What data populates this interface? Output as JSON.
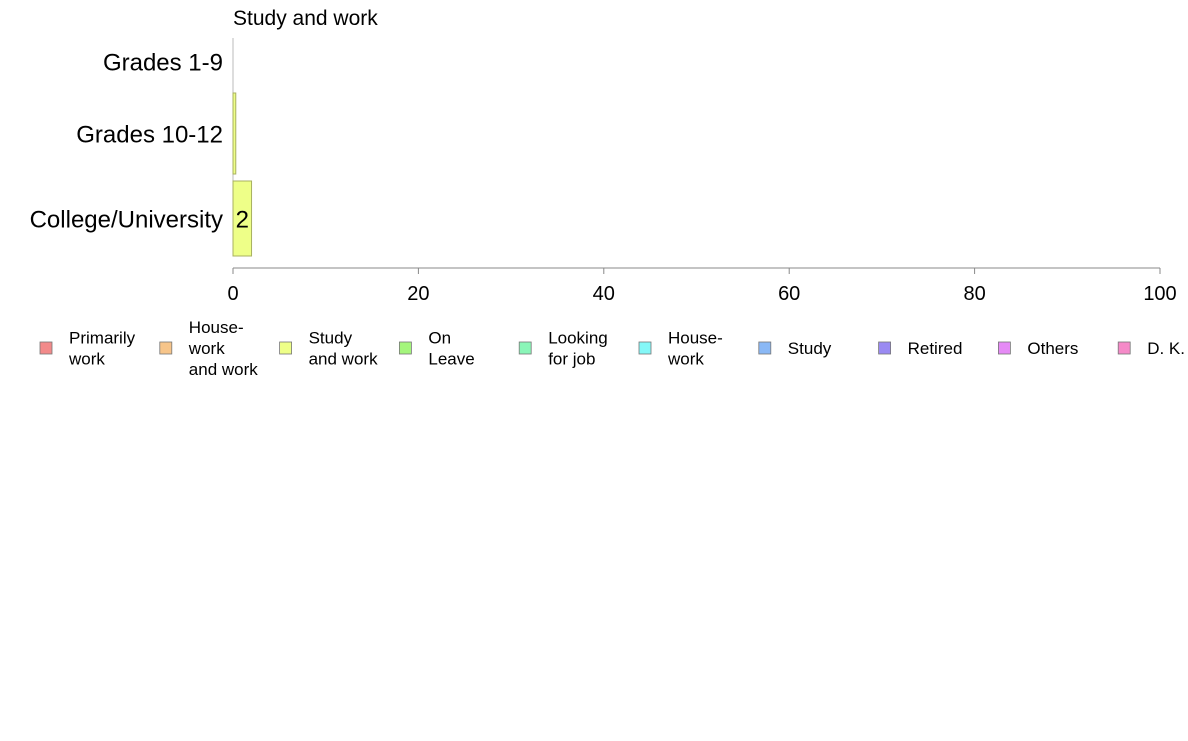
{
  "chart_data": {
    "type": "bar",
    "orientation": "horizontal",
    "title": "Study and work",
    "xlabel": "",
    "ylabel": "",
    "categories": [
      "Grades 1-9",
      "Grades 10-12",
      "College/University"
    ],
    "values": [
      0,
      0.3,
      2
    ],
    "data_labels": [
      "",
      "",
      "2"
    ],
    "bar_color": "#eeff88",
    "bar_stroke": "#a8b060",
    "xlim": [
      0,
      100
    ],
    "x_ticks": [
      0,
      20,
      40,
      60,
      80,
      100
    ],
    "grid": false,
    "legend_position": "bottom",
    "legend": [
      {
        "label": "Primarily work",
        "lines": [
          "Primarily",
          "work"
        ],
        "color": "#f28a8a"
      },
      {
        "label": "House-work and work",
        "lines": [
          "House-",
          "work",
          "and work"
        ],
        "color": "#f7c58a"
      },
      {
        "label": "Study and work",
        "lines": [
          "Study",
          "and work"
        ],
        "color": "#eeff88"
      },
      {
        "label": "On Leave",
        "lines": [
          "On",
          "Leave"
        ],
        "color": "#a4f57c"
      },
      {
        "label": "Looking for job",
        "lines": [
          "Looking",
          "for job"
        ],
        "color": "#8af5b8"
      },
      {
        "label": "House-work",
        "lines": [
          "House-",
          "work"
        ],
        "color": "#84f7f7"
      },
      {
        "label": "Study",
        "lines": [
          "Study"
        ],
        "color": "#8ab8f5"
      },
      {
        "label": "Retired",
        "lines": [
          "Retired"
        ],
        "color": "#9a8af2"
      },
      {
        "label": "Others",
        "lines": [
          "Others"
        ],
        "color": "#e58af5"
      },
      {
        "label": "D. K.",
        "lines": [
          "D. K."
        ],
        "color": "#f58ac8"
      }
    ]
  }
}
